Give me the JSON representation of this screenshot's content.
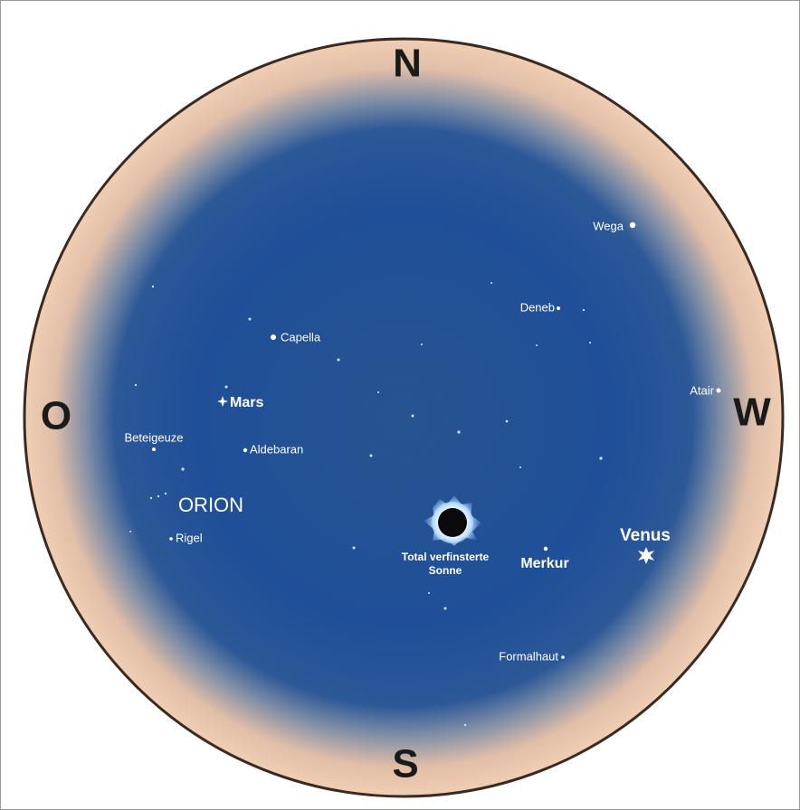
{
  "compass": {
    "north": "N",
    "south": "S",
    "east": "O",
    "west": "W"
  },
  "objects": [
    {
      "label": "Wega"
    },
    {
      "label": "Deneb"
    },
    {
      "label": "Capella"
    },
    {
      "label": "Mars"
    },
    {
      "label": "Atair"
    },
    {
      "label": "Beteigeuze"
    },
    {
      "label": "Aldebaran"
    },
    {
      "label": "Rigel"
    },
    {
      "label": "Merkur"
    },
    {
      "label": "Venus"
    },
    {
      "label": "Formalhaut"
    }
  ],
  "constellation": "ORION",
  "sun": {
    "label_lines": [
      "Total verfinsterte",
      "Sonne"
    ]
  }
}
